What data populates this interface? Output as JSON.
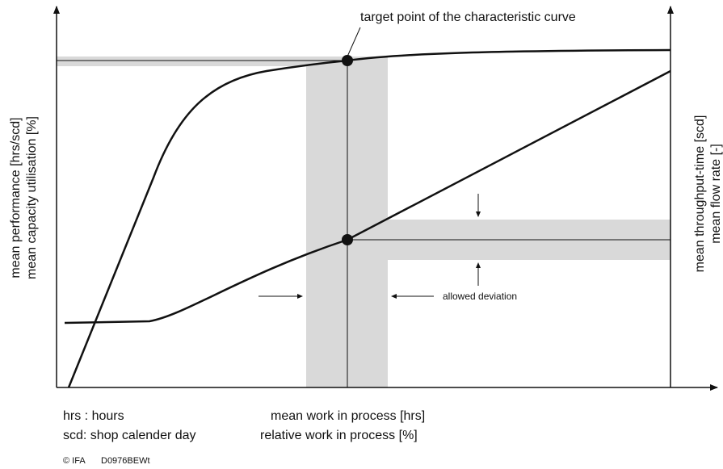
{
  "diagram": {
    "target_label": "target point of the characteristic curve",
    "left_axis_labels": [
      "mean performance [hrs/scd]",
      "mean capacity utilisation [%]"
    ],
    "right_axis_labels": [
      "mean throughput-time [scd]",
      "mean flow rate [-]"
    ],
    "deviation_label": "allowed deviation",
    "x_axis_labels": [
      "mean work in process [hrs]",
      "relative work in process [%]"
    ],
    "legend": [
      "hrs : hours",
      "scd: shop calender day"
    ],
    "footer": [
      "© IFA",
      "D0976BEWt"
    ]
  }
}
